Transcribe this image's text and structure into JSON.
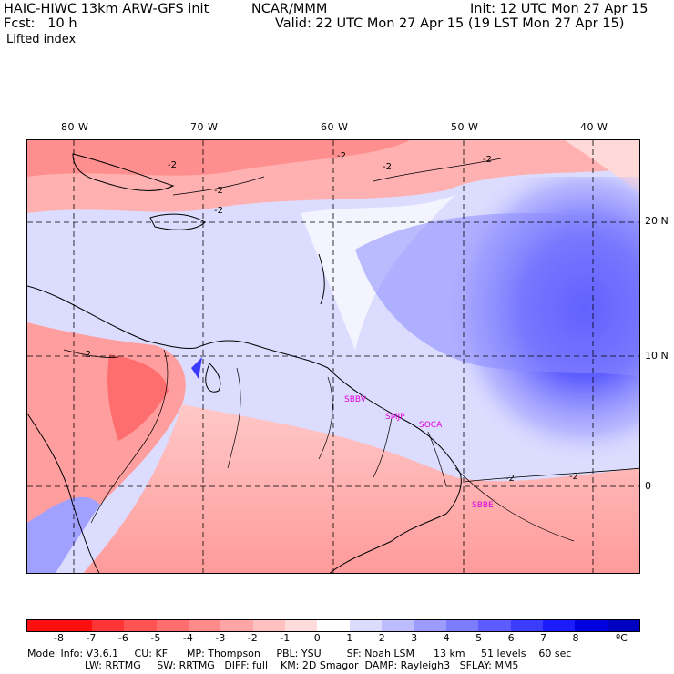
{
  "header": {
    "title_left": "HAIC-HIWC 13km ARW-GFS init",
    "org": "NCAR/MMM",
    "init": "Init: 12 UTC Mon 27 Apr 15",
    "fcst": "Fcst:   10 h",
    "valid": "Valid: 22 UTC Mon 27 Apr 15 (19 LST Mon 27 Apr 15)",
    "field": "Lifted index"
  },
  "map": {
    "lon_labels": [
      "80 W",
      "70 W",
      "60 W",
      "50 W",
      "40 W"
    ],
    "lat_labels": [
      "20 N",
      "10 N",
      "0"
    ],
    "contour_labels": [
      "-2",
      "-2",
      "-2",
      "-2",
      "-2",
      "-2",
      "-2",
      "-2",
      "-2"
    ],
    "stations": [
      "SBBV",
      "SMJP",
      "SOCA",
      "SBBE"
    ],
    "station_color": "#e000e0"
  },
  "colorbar": {
    "ticks": [
      "-8",
      "-7",
      "-6",
      "-5",
      "-4",
      "-3",
      "-2",
      "-1",
      "0",
      "1",
      "2",
      "3",
      "4",
      "5",
      "6",
      "7",
      "8"
    ],
    "unit": "ºC",
    "colors": [
      "#ff1010",
      "#ff3535",
      "#ff5353",
      "#ff6e6e",
      "#ff8a8a",
      "#ffa5a5",
      "#ffc0c0",
      "#ffdcdc",
      "#ffffff",
      "#dcdcff",
      "#bcbcff",
      "#9c9cff",
      "#7c7cff",
      "#5c5cff",
      "#3c3cff",
      "#1c1cff",
      "#0000e0"
    ]
  },
  "footer": {
    "line1": "Model Info: V3.6.1     CU: KF      MP: Thompson     PBL: YSU        SF: Noah LSM      13 km     51 levels    60 sec",
    "line2": "                  LW: RRTMG     SW: RRTMG   DIFF: full    KM: 2D Smagor  DAMP: Rayleigh3   SFLAY: MM5"
  }
}
